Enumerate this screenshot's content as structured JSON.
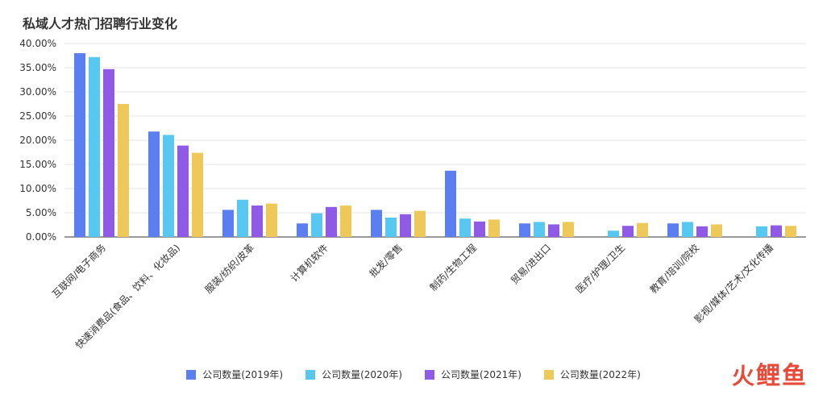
{
  "chart_data": {
    "type": "bar",
    "title": "私域人才热门招聘行业变化",
    "xlabel": "",
    "ylabel": "",
    "ylim": [
      0,
      0.4
    ],
    "yticks": [
      "0.00%",
      "5.00%",
      "10.00%",
      "15.00%",
      "20.00%",
      "25.00%",
      "30.00%",
      "35.00%",
      "40.00%"
    ],
    "grid": true,
    "legend_position": "bottom-center",
    "categories": [
      "互联网/电子商务",
      "快速消费品(食品、饮料、化妆品)",
      "服装/纺织/皮革",
      "计算机软件",
      "批发/零售",
      "制药/生物工程",
      "贸易/进出口",
      "医疗/护理/卫生",
      "教育/培训/院校",
      "影视/媒体/艺术/文化传播"
    ],
    "series": [
      {
        "name": "公司数量(2019年)",
        "color": "#5b7ff0",
        "values": [
          0.38,
          0.218,
          0.056,
          0.028,
          0.056,
          0.137,
          0.028,
          null,
          0.028,
          null
        ]
      },
      {
        "name": "公司数量(2020年)",
        "color": "#58c8f0",
        "values": [
          0.372,
          0.211,
          0.077,
          0.049,
          0.04,
          0.038,
          0.031,
          0.013,
          0.031,
          0.022
        ]
      },
      {
        "name": "公司数量(2021年)",
        "color": "#8f5be6",
        "values": [
          0.347,
          0.189,
          0.065,
          0.062,
          0.047,
          0.032,
          0.026,
          0.023,
          0.022,
          0.024
        ]
      },
      {
        "name": "公司数量(2022年)",
        "color": "#eec95a",
        "values": [
          0.275,
          0.174,
          0.069,
          0.065,
          0.054,
          0.036,
          0.031,
          0.029,
          0.026,
          0.023
        ]
      }
    ]
  },
  "watermark": {
    "brand": "鲤鱼",
    "icon": "fire-icon"
  }
}
